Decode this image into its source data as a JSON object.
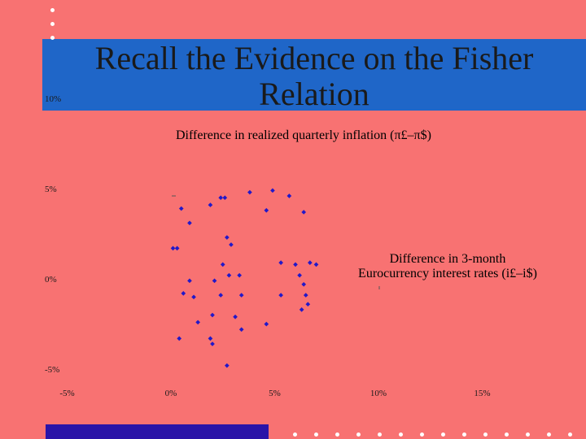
{
  "slide": {
    "title_line1": "Recall the Evidence on the Fisher",
    "title_line2": "Relation",
    "y_axis_label": "Difference in realized quarterly inflation (π£–π$)",
    "x_axis_label_line1": "Difference in 3-month",
    "x_axis_label_line2": "Eurocurrency interest rates (i£–i$)"
  },
  "colors": {
    "background": "#f87272",
    "title_bar": "#1f66c8",
    "bottom_bar": "#2a14a8",
    "points": "#2218c8"
  },
  "chart_data": {
    "type": "scatter",
    "title": "",
    "xlabel": "Difference in 3-month Eurocurrency interest rates (i£–i$)",
    "ylabel": "Difference in realized quarterly inflation (π£–π$)",
    "x_ticks": [
      "-5%",
      "0%",
      "5%",
      "10%",
      "15%"
    ],
    "y_ticks": [
      "-5%",
      "0%",
      "5%",
      "10%"
    ],
    "xlim": [
      -5,
      15
    ],
    "ylim": [
      -5,
      10
    ],
    "grid": false,
    "points": [
      [
        3.8,
        5.2
      ],
      [
        4.9,
        5.3
      ],
      [
        5.7,
        5.0
      ],
      [
        2.4,
        4.9
      ],
      [
        2.6,
        4.9
      ],
      [
        1.9,
        4.5
      ],
      [
        0.5,
        4.3
      ],
      [
        4.6,
        4.2
      ],
      [
        6.4,
        4.1
      ],
      [
        0.9,
        3.5
      ],
      [
        2.7,
        2.7
      ],
      [
        2.9,
        2.3
      ],
      [
        0.1,
        2.1
      ],
      [
        0.3,
        2.1
      ],
      [
        2.5,
        1.2
      ],
      [
        5.3,
        1.3
      ],
      [
        6.0,
        1.2
      ],
      [
        6.7,
        1.3
      ],
      [
        7.0,
        1.2
      ],
      [
        2.8,
        0.6
      ],
      [
        3.3,
        0.6
      ],
      [
        6.2,
        0.6
      ],
      [
        0.9,
        0.3
      ],
      [
        2.1,
        0.3
      ],
      [
        6.4,
        0.1
      ],
      [
        0.6,
        -0.4
      ],
      [
        1.1,
        -0.6
      ],
      [
        2.4,
        -0.5
      ],
      [
        3.4,
        -0.5
      ],
      [
        5.3,
        -0.5
      ],
      [
        6.5,
        -0.5
      ],
      [
        6.6,
        -1.0
      ],
      [
        6.3,
        -1.3
      ],
      [
        2.0,
        -1.6
      ],
      [
        3.1,
        -1.7
      ],
      [
        1.3,
        -2.0
      ],
      [
        4.6,
        -2.1
      ],
      [
        3.4,
        -2.4
      ],
      [
        1.9,
        -2.9
      ],
      [
        0.4,
        -2.9
      ],
      [
        2.0,
        -3.2
      ],
      [
        2.7,
        -4.4
      ]
    ]
  }
}
